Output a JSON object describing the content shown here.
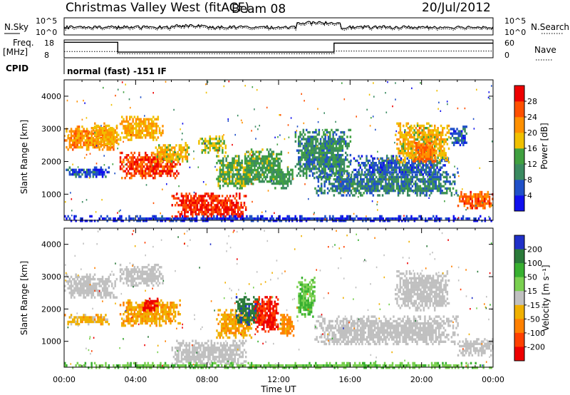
{
  "header": {
    "station": "Christmas Valley West (fitACF)",
    "beam": "Beam 08",
    "date": "20/Jul/2012"
  },
  "summary": {
    "nsky_label": "N.Sky",
    "nsky_ticks": [
      "10^5",
      "10^0"
    ],
    "nsearch_label": "N.Search",
    "nsearch_ticks": [
      "10^5",
      "10^0"
    ],
    "freq_label": "Freq.",
    "freq_unit": "[MHz]",
    "freq_ticks": [
      "18",
      "8"
    ],
    "nave_label": "Nave",
    "nave_ticks": [
      "60",
      "0"
    ],
    "cpid_label": "CPID",
    "cpid_text": "normal (fast) -151 IF"
  },
  "colors": {
    "power_scale": [
      "#1010ee",
      "#2050c8",
      "#3a8a60",
      "#40a040",
      "#f0c000",
      "#ff9000",
      "#ff5000",
      "#ee0000"
    ],
    "velocity_scale": [
      "#2030c8",
      "#2a7a3a",
      "#38b030",
      "#7ad050",
      "#c0c0c0",
      "#f0b000",
      "#ff8000",
      "#ff4000",
      "#ee0000"
    ],
    "ground_scatter": "#c0c0c0"
  },
  "chart_data": [
    {
      "type": "heatmap",
      "panel": "power",
      "ylabel": "Slant Range [km]",
      "yticks": [
        1000,
        2000,
        3000,
        4000
      ],
      "ylim": [
        200,
        4500
      ],
      "xlim": [
        0,
        24
      ],
      "colorbar_label": "Power [dB]",
      "colorbar_ticks": [
        "4",
        "8",
        "12",
        "16",
        "20",
        "24",
        "28"
      ],
      "colorbar_range": [
        0,
        32
      ],
      "regions": [
        {
          "t": [
            0,
            2.9
          ],
          "range": [
            2350,
            3100
          ],
          "value": 22
        },
        {
          "t": [
            0,
            2.5
          ],
          "range": [
            1550,
            1850
          ],
          "value": 6
        },
        {
          "t": [
            1.5,
            3.0
          ],
          "range": [
            2500,
            3200
          ],
          "value": 20
        },
        {
          "t": [
            3.1,
            5.5
          ],
          "range": [
            2700,
            3400
          ],
          "value": 20
        },
        {
          "t": [
            3.1,
            6.5
          ],
          "range": [
            1500,
            2300
          ],
          "value": 27
        },
        {
          "t": [
            5.0,
            7.0
          ],
          "range": [
            2000,
            2600
          ],
          "value": 18
        },
        {
          "t": [
            6.0,
            10.2
          ],
          "range": [
            300,
            1050
          ],
          "value": 28
        },
        {
          "t": [
            7.5,
            9.0
          ],
          "range": [
            2300,
            2800
          ],
          "value": 16
        },
        {
          "t": [
            8.5,
            10.5
          ],
          "range": [
            1200,
            2200
          ],
          "value": 14
        },
        {
          "t": [
            10.0,
            12.2
          ],
          "range": [
            1300,
            2400
          ],
          "value": 13
        },
        {
          "t": [
            11.5,
            12.8
          ],
          "range": [
            1200,
            1850
          ],
          "value": 12
        },
        {
          "t": [
            12.9,
            16.0
          ],
          "range": [
            1500,
            3000
          ],
          "value": 10
        },
        {
          "t": [
            14.0,
            22.0
          ],
          "range": [
            1000,
            1700
          ],
          "value": 9
        },
        {
          "t": [
            16.0,
            21.5
          ],
          "range": [
            1600,
            2200
          ],
          "value": 7
        },
        {
          "t": [
            18.5,
            21.5
          ],
          "range": [
            2000,
            3200
          ],
          "value": 19
        },
        {
          "t": [
            19.5,
            20.8
          ],
          "range": [
            2000,
            2600
          ],
          "value": 24
        },
        {
          "t": [
            21.5,
            22.5
          ],
          "range": [
            2500,
            3100
          ],
          "value": 6
        },
        {
          "t": [
            22.0,
            24.0
          ],
          "range": [
            600,
            1100
          ],
          "value": 25
        },
        {
          "t": [
            0,
            24.0
          ],
          "range": [
            200,
            360
          ],
          "value": 4
        }
      ]
    },
    {
      "type": "heatmap",
      "panel": "velocity",
      "ylabel": "Slant Range [km]",
      "yticks": [
        1000,
        2000,
        3000,
        4000
      ],
      "ylim": [
        200,
        4500
      ],
      "xlim": [
        0,
        24
      ],
      "xlabel": "Time UT",
      "xticks": [
        "00:00",
        "04:00",
        "08:00",
        "12:00",
        "16:00",
        "20:00",
        "00:00"
      ],
      "colorbar_label": "Velocity [m s⁻¹]",
      "colorbar_ticks": [
        "200",
        "100",
        "50",
        "15",
        "-15",
        "-50",
        "-100",
        "-200"
      ],
      "colorbar_range": [
        -250,
        250
      ],
      "regions": [
        {
          "t": [
            0,
            2.9
          ],
          "range": [
            2350,
            3100
          ],
          "value": 0,
          "ground_scatter": true
        },
        {
          "t": [
            0,
            2.5
          ],
          "range": [
            1550,
            1850
          ],
          "value": -30
        },
        {
          "t": [
            3.1,
            5.5
          ],
          "range": [
            2700,
            3400
          ],
          "value": 0,
          "ground_scatter": true
        },
        {
          "t": [
            3.1,
            6.5
          ],
          "range": [
            1500,
            2300
          ],
          "value": -40
        },
        {
          "t": [
            4.3,
            5.2
          ],
          "range": [
            1950,
            2350
          ],
          "value": -220
        },
        {
          "t": [
            6.0,
            10.2
          ],
          "range": [
            300,
            1050
          ],
          "value": 0,
          "ground_scatter": true
        },
        {
          "t": [
            8.5,
            10.5
          ],
          "range": [
            1100,
            2000
          ],
          "value": -40
        },
        {
          "t": [
            9.6,
            11.0
          ],
          "range": [
            1500,
            2400
          ],
          "value": 180
        },
        {
          "t": [
            10.6,
            12.0
          ],
          "range": [
            1300,
            2400
          ],
          "value": -200
        },
        {
          "t": [
            12.0,
            12.8
          ],
          "range": [
            1200,
            1850
          ],
          "value": -60
        },
        {
          "t": [
            13.0,
            14.0
          ],
          "range": [
            1800,
            3000
          ],
          "value": 50
        },
        {
          "t": [
            14.0,
            22.0
          ],
          "range": [
            900,
            1800
          ],
          "value": 0,
          "ground_scatter": true
        },
        {
          "t": [
            18.5,
            21.5
          ],
          "range": [
            2000,
            3200
          ],
          "value": 0,
          "ground_scatter": true
        },
        {
          "t": [
            22.0,
            24.0
          ],
          "range": [
            600,
            1100
          ],
          "value": 0,
          "ground_scatter": true
        },
        {
          "t": [
            0,
            24.0
          ],
          "range": [
            200,
            360
          ],
          "value": 40
        }
      ]
    },
    {
      "type": "line",
      "panel": "frequency",
      "ylim": [
        8,
        18
      ],
      "series": [
        {
          "x": [
            0,
            3.0,
            3.0,
            15.1,
            15.1,
            24
          ],
          "values": [
            17,
            17,
            11,
            11,
            16.5,
            16.5
          ]
        }
      ]
    },
    {
      "type": "line",
      "panel": "nave",
      "ylim": [
        0,
        60
      ],
      "series": [
        {
          "x": [
            0,
            3.0,
            3.0,
            15.1,
            15.1,
            24
          ],
          "values": [
            20,
            20,
            12,
            12,
            22,
            22
          ]
        }
      ]
    }
  ]
}
